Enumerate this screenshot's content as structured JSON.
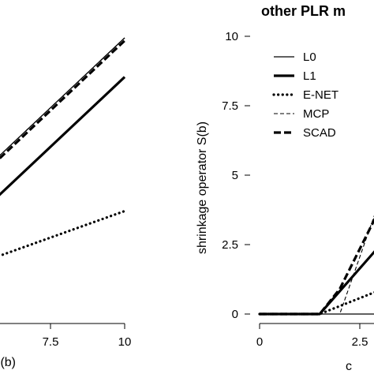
{
  "chart_data": [
    {
      "type": "line",
      "title": "",
      "xlabel": "t (b)",
      "ylabel": "",
      "xlim": [
        0,
        10
      ],
      "xticks": [
        7.5,
        10
      ],
      "x_tick_labels": [
        "7.5",
        "10"
      ],
      "grid": false,
      "series": [
        {
          "name": "",
          "style": "solid-thin",
          "x": [
            0,
            10
          ],
          "y": [
            0,
            10
          ]
        },
        {
          "name": "",
          "style": "dashed-thin",
          "x": [
            0,
            10
          ],
          "y": [
            0,
            10
          ]
        },
        {
          "name": "",
          "style": "dashed-thick",
          "x": [
            0,
            10
          ],
          "y": [
            -0.1,
            9.9
          ]
        },
        {
          "name": "",
          "style": "solid-thick",
          "x": [
            0,
            10
          ],
          "y": [
            -1.4,
            8.6
          ]
        },
        {
          "name": "",
          "style": "dotted",
          "x": [
            0,
            10
          ],
          "y": [
            0,
            3.8
          ]
        }
      ]
    },
    {
      "type": "line",
      "title": "other PLR m",
      "xlabel": "c",
      "ylabel": "shrinkage operator S(b)",
      "xlim": [
        0,
        2.9
      ],
      "ylim": [
        0,
        10
      ],
      "xticks": [
        0,
        2.5
      ],
      "x_tick_labels": [
        "0",
        "2.5"
      ],
      "yticks": [
        0,
        2.5,
        5,
        7.5,
        10
      ],
      "y_tick_labels": [
        "0",
        "2.5",
        "5",
        "7.5",
        "10"
      ],
      "grid": false,
      "legend_position": "top-right",
      "series": [
        {
          "name": "L0",
          "style": "solid-thin",
          "x": [
            0,
            2.9
          ],
          "y": [
            0,
            0
          ]
        },
        {
          "name": "L1",
          "style": "solid-thick",
          "x": [
            0,
            1.5,
            2.9
          ],
          "y": [
            0,
            0,
            2.3
          ]
        },
        {
          "name": "E-NET",
          "style": "dotted",
          "x": [
            0,
            1.5,
            2.9
          ],
          "y": [
            0,
            0,
            0.8
          ]
        },
        {
          "name": "MCP",
          "style": "dashed-thin",
          "x": [
            0,
            2.0,
            2.9
          ],
          "y": [
            0,
            0,
            3.7
          ]
        },
        {
          "name": "SCAD",
          "style": "dashed-thick",
          "x": [
            0,
            1.5,
            2.0,
            2.9
          ],
          "y": [
            0,
            0,
            0.9,
            3.5
          ]
        }
      ]
    }
  ]
}
